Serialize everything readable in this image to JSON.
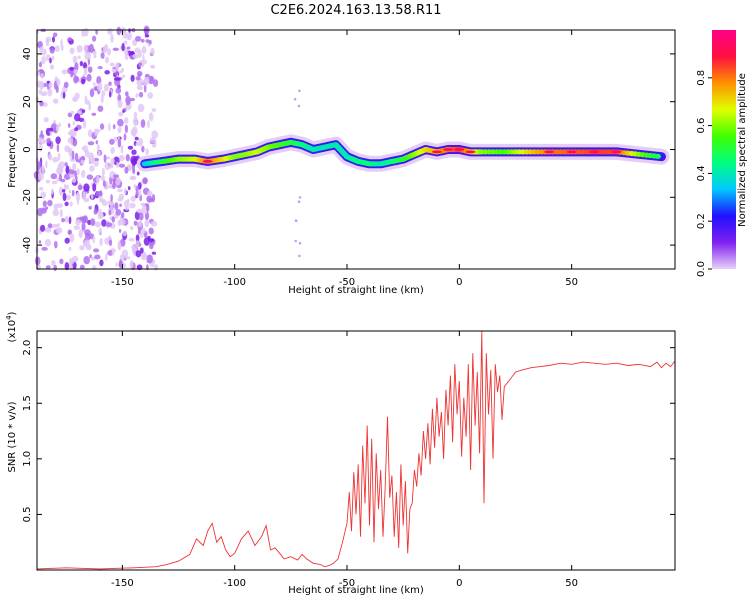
{
  "title": "C2E6.2024.163.13.58.R11",
  "chart_data": [
    {
      "type": "heatmap",
      "xlabel": "Height of straight line (km)",
      "ylabel": "Frequency (Hz)",
      "xlim": [
        -188,
        96
      ],
      "ylim": [
        -50,
        50
      ],
      "xticks": [
        -150,
        -100,
        -50,
        0,
        50
      ],
      "yticks": [
        -40,
        -20,
        0,
        20,
        40
      ],
      "colorbar": {
        "label": "Normalized spectral amplitude",
        "range": [
          0,
          1
        ],
        "ticks": [
          "0.0",
          "0.2",
          "0.4",
          "0.6",
          "0.8"
        ],
        "colors": [
          "#e8d0f8",
          "#8020f0",
          "#2010ff",
          "#00c8ff",
          "#00ff80",
          "#40ff00",
          "#e0ff00",
          "#ff9000",
          "#ff1040",
          "#ff0088"
        ]
      },
      "noise_region_x": [
        -188,
        -135
      ],
      "ridge": [
        [
          -140,
          -6,
          0.35
        ],
        [
          -132,
          -5,
          0.5
        ],
        [
          -125,
          -4,
          0.6
        ],
        [
          -118,
          -4,
          0.65
        ],
        [
          -112,
          -5,
          0.8
        ],
        [
          -105,
          -4,
          0.7
        ],
        [
          -100,
          -3,
          0.6
        ],
        [
          -95,
          -2,
          0.6
        ],
        [
          -90,
          -1,
          0.65
        ],
        [
          -85,
          1,
          0.6
        ],
        [
          -80,
          2,
          0.55
        ],
        [
          -75,
          3,
          0.5
        ],
        [
          -70,
          2,
          0.45
        ],
        [
          -65,
          0,
          0.4
        ],
        [
          -60,
          1,
          0.4
        ],
        [
          -55,
          2,
          0.4
        ],
        [
          -50,
          -3,
          0.4
        ],
        [
          -45,
          -5,
          0.45
        ],
        [
          -40,
          -6,
          0.45
        ],
        [
          -35,
          -6,
          0.4
        ],
        [
          -30,
          -5,
          0.45
        ],
        [
          -25,
          -4,
          0.5
        ],
        [
          -20,
          -2,
          0.6
        ],
        [
          -15,
          0,
          0.7
        ],
        [
          -10,
          -1,
          0.75
        ],
        [
          -5,
          0,
          0.8
        ],
        [
          0,
          0,
          0.85
        ],
        [
          5,
          -1,
          0.75
        ],
        [
          10,
          -1,
          0.6
        ],
        [
          20,
          -1,
          0.55
        ],
        [
          30,
          -1,
          0.7
        ],
        [
          40,
          -1,
          0.8
        ],
        [
          50,
          -1,
          0.82
        ],
        [
          60,
          -1,
          0.85
        ],
        [
          70,
          -1,
          0.85
        ],
        [
          80,
          -2,
          0.6
        ],
        [
          90,
          -3,
          0.45
        ]
      ]
    },
    {
      "type": "line",
      "xlabel": "Height of straight line (km)",
      "ylabel": "SNR (10 * v/v)",
      "multiplier": "(x10",
      "multiplier_exp": "4",
      "multiplier_close": ")",
      "xlim": [
        -188,
        96
      ],
      "ylim": [
        0,
        2.15
      ],
      "xticks": [
        -150,
        -100,
        -50,
        0,
        50
      ],
      "yticks": [
        "0.5",
        "1.0",
        "1.5",
        "2.0"
      ],
      "color": "#ee3333",
      "series": [
        {
          "x": [
            -188,
            -175,
            -160,
            -145,
            -135,
            -130,
            -125,
            -120,
            -117,
            -114,
            -112,
            -110,
            -108,
            -106,
            -104,
            -102,
            -100,
            -97,
            -94,
            -91,
            -88,
            -86,
            -84,
            -82,
            -80,
            -78,
            -75,
            -72,
            -70,
            -68,
            -65,
            -62,
            -60,
            -58,
            -56,
            -54,
            -52,
            -50,
            -49,
            -48,
            -47,
            -46,
            -45,
            -44,
            -43,
            -42,
            -41,
            -40,
            -39,
            -38,
            -37,
            -36,
            -35,
            -34,
            -33,
            -32,
            -31,
            -30,
            -29,
            -28,
            -27,
            -26,
            -25,
            -24,
            -23,
            -22,
            -21,
            -20,
            -19,
            -18,
            -17,
            -16,
            -15,
            -14,
            -13,
            -12,
            -11,
            -10,
            -9,
            -8,
            -7,
            -6,
            -5,
            -4,
            -3,
            -2,
            -1,
            0,
            1,
            2,
            3,
            4,
            5,
            6,
            7,
            8,
            9,
            10,
            11,
            12,
            13,
            14,
            15,
            16,
            17,
            18,
            19,
            20,
            22,
            25,
            28,
            32,
            36,
            40,
            45,
            50,
            55,
            60,
            65,
            70,
            75,
            80,
            85,
            88,
            90,
            92,
            94,
            96
          ],
          "y": [
            0.01,
            0.02,
            0.01,
            0.02,
            0.03,
            0.05,
            0.08,
            0.14,
            0.28,
            0.22,
            0.35,
            0.42,
            0.25,
            0.3,
            0.18,
            0.12,
            0.15,
            0.28,
            0.35,
            0.22,
            0.3,
            0.4,
            0.18,
            0.2,
            0.15,
            0.1,
            0.12,
            0.09,
            0.14,
            0.1,
            0.06,
            0.05,
            0.03,
            0.04,
            0.06,
            0.1,
            0.25,
            0.42,
            0.7,
            0.35,
            0.88,
            0.5,
            0.95,
            0.3,
            1.12,
            0.6,
            1.3,
            0.4,
            1.18,
            0.25,
            1.05,
            0.55,
            0.9,
            0.3,
            0.75,
            1.38,
            0.65,
            0.85,
            0.3,
            0.7,
            0.2,
            0.95,
            0.4,
            0.8,
            0.15,
            0.55,
            0.6,
            0.9,
            0.75,
            1.05,
            0.85,
            1.25,
            1.0,
            1.32,
            0.95,
            1.45,
            1.1,
            1.55,
            1.2,
            1.42,
            1.0,
            1.62,
            1.3,
            1.75,
            1.15,
            1.85,
            1.4,
            1.7,
            1.02,
            1.55,
            1.2,
            1.85,
            0.9,
            1.95,
            1.3,
            1.78,
            1.05,
            2.15,
            0.6,
            1.95,
            1.4,
            1.8,
            1.0,
            1.85,
            1.6,
            1.75,
            1.35,
            1.65,
            1.7,
            1.78,
            1.8,
            1.82,
            1.83,
            1.84,
            1.86,
            1.85,
            1.87,
            1.86,
            1.85,
            1.86,
            1.84,
            1.85,
            1.83,
            1.87,
            1.82,
            1.86,
            1.83,
            1.88
          ]
        }
      ]
    }
  ]
}
